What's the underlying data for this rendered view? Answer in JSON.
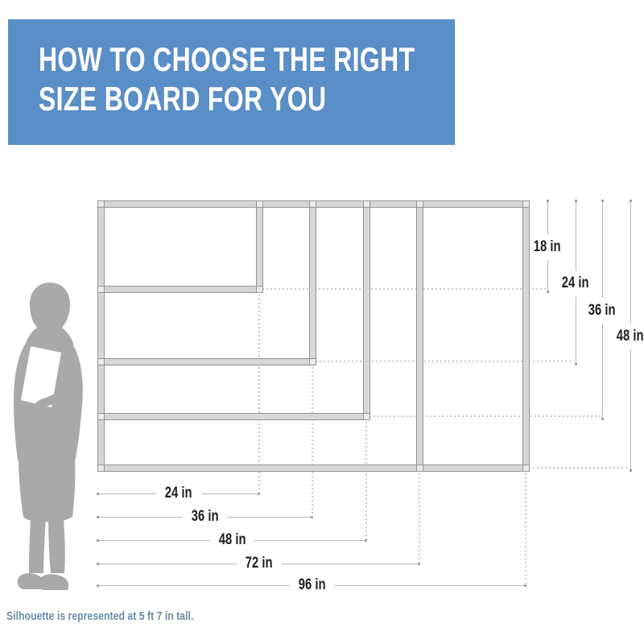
{
  "header": {
    "title_line1": "HOW TO CHOOSE THE RIGHT",
    "title_line2": "SIZE BOARD FOR YOU"
  },
  "diagram": {
    "boards": [
      {
        "name": "board-24x18",
        "width_in": 24,
        "height_in": 18
      },
      {
        "name": "board-36x24",
        "width_in": 36,
        "height_in": 24
      },
      {
        "name": "board-48x36",
        "width_in": 48,
        "height_in": 36
      },
      {
        "name": "board-72x48",
        "width_in": 72,
        "height_in": 48
      },
      {
        "name": "board-96x48",
        "width_in": 96,
        "height_in": 48
      }
    ],
    "width_dim_labels": [
      "24 in",
      "36 in",
      "48 in",
      "72 in",
      "96 in"
    ],
    "height_dim_labels": [
      "18 in",
      "24 in",
      "36 in",
      "48 in"
    ]
  },
  "silhouette": {
    "description": "Gray silhouette of a woman holding a document",
    "caption": "Silhouette is represented at 5 ft 7 in tall."
  },
  "colors": {
    "background": "#ffffff",
    "banner_bg": "#5a8ec6",
    "banner_text": "#ffffff",
    "frame_fill": "#d7d7d7",
    "frame_line": "#949494",
    "corner_fill": "#eaeaea",
    "dim_line": "#b5b5b5",
    "dim_text": "#1f1f1f",
    "dotted_line": "#cbcbcb",
    "silhouette": "#a9a9a9",
    "caption_text": "#6e8ba8"
  }
}
